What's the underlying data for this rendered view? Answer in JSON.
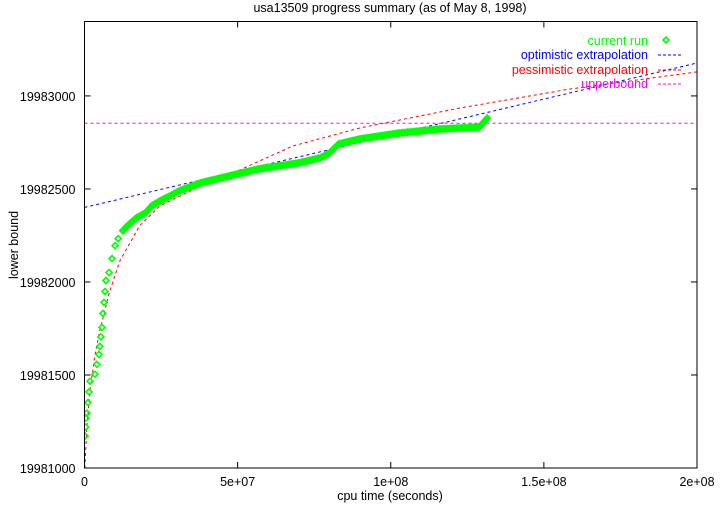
{
  "chart_data": {
    "type": "line",
    "title": "usa13509 progress summary (as of May 8, 1998)",
    "xlabel": "cpu time (seconds)",
    "ylabel": "lower bound",
    "xlim": [
      0,
      200000000
    ],
    "ylim": [
      19981000,
      19983400
    ],
    "xticks": [
      0,
      50000000,
      100000000,
      150000000,
      200000000
    ],
    "xtick_labels": [
      "0",
      "5e+07",
      "1e+08",
      "1.5e+08",
      "2e+08"
    ],
    "yticks": [
      19981000,
      19981500,
      19982000,
      19982500,
      19983000
    ],
    "ytick_labels": [
      "19981000",
      "19981500",
      "19982000",
      "19982500",
      "19983000"
    ],
    "grid": false,
    "legend_position": "top-right",
    "series": [
      {
        "name": "current run",
        "style": "points",
        "marker": "diamond",
        "color": "#00ff00",
        "x": [
          200000,
          500000,
          800000,
          1800000,
          3400000,
          4700000,
          5000000,
          5700000,
          6000000,
          6400000,
          7000000,
          8000000,
          9000000,
          10000000,
          11000000,
          12500000,
          14000000,
          17000000,
          20000000,
          22000000,
          24700000,
          28000000,
          31000000,
          38000000,
          47500000,
          57000000,
          70000000,
          77000000,
          80000000,
          83000000,
          90000000,
          103000000,
          116000000,
          129000000,
          131500000
        ],
        "y": [
          19981172,
          19981268,
          19981295,
          19981466,
          19981504,
          19981611,
          19981654,
          19981756,
          19981831,
          19981890,
          19982008,
          19982051,
          19982126,
          19982195,
          19982233,
          19982276,
          19982302,
          19982345,
          19982372,
          19982410,
          19982436,
          19982463,
          19982490,
          19982533,
          19982571,
          19982608,
          19982640,
          19982667,
          19982694,
          19982742,
          19982769,
          19982801,
          19982822,
          19982833,
          19982881
        ]
      },
      {
        "name": "optimistic extrapolation",
        "style": "dashed",
        "color": "#0000ff",
        "x": [
          0,
          200000000
        ],
        "y": [
          19982401,
          19983177
        ]
      },
      {
        "name": "pessimistic extrapolation",
        "style": "dashed",
        "color": "#ff0000",
        "x": [
          100000,
          800000,
          1800000,
          3400000,
          5000000,
          8300000,
          11600000,
          18000000,
          24700000,
          38000000,
          50000000,
          68000000,
          90000000,
          122600000,
          158600000,
          200000000
        ],
        "y": [
          19981000,
          19981230,
          19981418,
          19981605,
          19981740,
          19981954,
          19982115,
          19982302,
          19982410,
          19982517,
          19982597,
          19982731,
          19982828,
          19982935,
          19983037,
          19983129
        ]
      },
      {
        "name": "upperbound",
        "style": "dashed",
        "color": "#ff00ff",
        "x": [
          0,
          200000000
        ],
        "y": [
          19982853,
          19982853
        ]
      }
    ]
  }
}
